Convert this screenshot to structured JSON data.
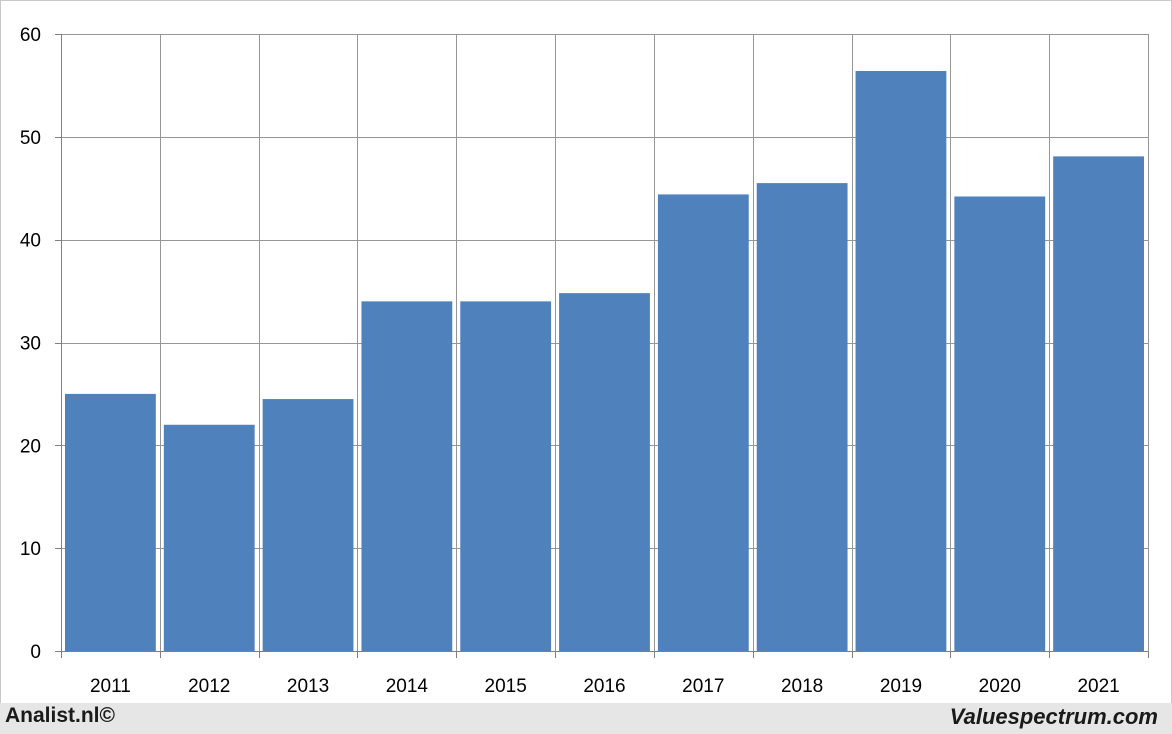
{
  "chart_data": {
    "type": "bar",
    "categories": [
      "2011",
      "2012",
      "2013",
      "2014",
      "2015",
      "2016",
      "2017",
      "2018",
      "2019",
      "2020",
      "2021"
    ],
    "values": [
      25.0,
      22.0,
      24.5,
      34.0,
      34.0,
      34.8,
      44.4,
      45.5,
      56.4,
      44.2,
      48.1
    ],
    "ylim": [
      0,
      60
    ],
    "yticks": [
      "0",
      "10",
      "20",
      "30",
      "40",
      "50",
      "60"
    ],
    "title": "",
    "xlabel": "",
    "ylabel": "",
    "grid": true,
    "bar_color": "#4f81bd",
    "grid_color": "#969696"
  },
  "footer": {
    "left_text": "Analist.nl©",
    "right_text": "Valuespectrum.com"
  }
}
